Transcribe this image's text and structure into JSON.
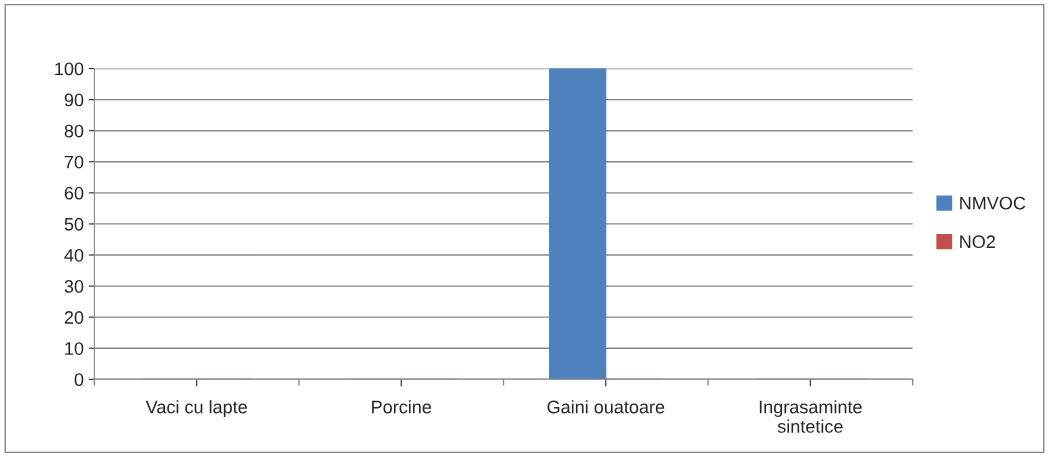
{
  "chart_data": {
    "type": "bar",
    "categories": [
      "Vaci cu lapte",
      "Porcine",
      "Gaini ouatoare",
      "Ingrasaminte\nsintetice"
    ],
    "series": [
      {
        "name": "NMVOC",
        "color": "#4f81bd",
        "values": [
          0,
          0,
          100,
          0
        ]
      },
      {
        "name": "NO2",
        "color": "#c0504d",
        "values": [
          0,
          0,
          0,
          0
        ]
      }
    ],
    "ylim": [
      0,
      100
    ],
    "yticks": [
      0,
      10,
      20,
      30,
      40,
      50,
      60,
      70,
      80,
      90,
      100
    ],
    "grid": "y",
    "legend": "right"
  }
}
